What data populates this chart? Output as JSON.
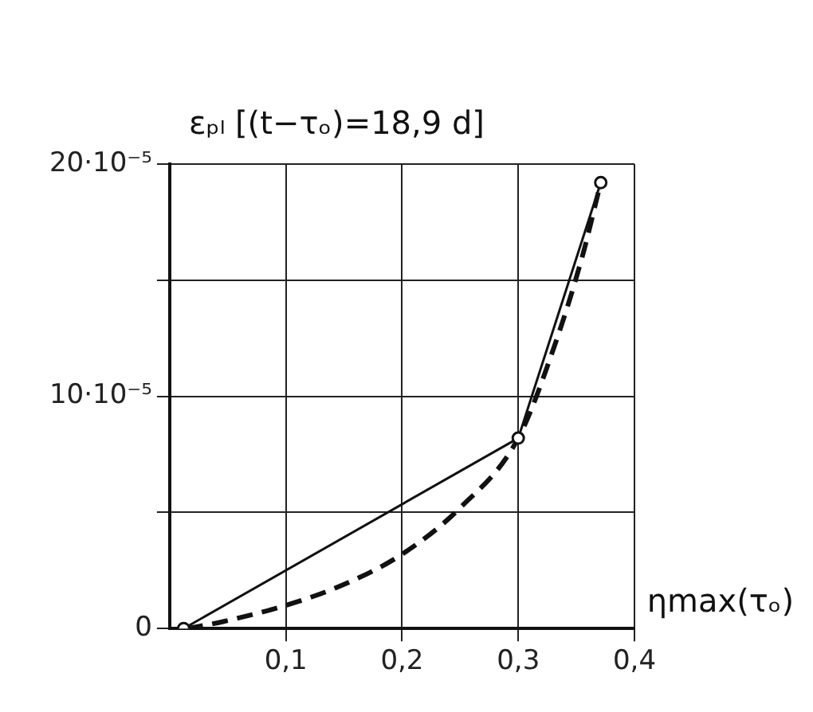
{
  "chart_data": {
    "type": "line",
    "xlabel": "ηmax(τₒ)",
    "ylabel": "εₚₗ [(t−τₒ)=18,9 d]",
    "xlim": [
      0,
      0.4
    ],
    "xticks": [
      {
        "value": 0.1,
        "label": "0,1"
      },
      {
        "value": 0.2,
        "label": "0,2"
      },
      {
        "value": 0.3,
        "label": "0,3"
      },
      {
        "value": 0.4,
        "label": "0,4"
      }
    ],
    "ylim": [
      0,
      0.0002
    ],
    "yticks": [
      0,
      {
        "value": 5e-05,
        "label": null
      },
      {
        "value": 0.0001,
        "label": "10·10⁻⁵"
      },
      {
        "value": 0.00015,
        "label": null
      },
      {
        "value": 0.0002,
        "label": "20·10⁻⁵"
      }
    ],
    "grid": true,
    "legend": false,
    "series": [
      {
        "color": "#111111",
        "x": [
          0.012,
          0.3,
          0.371
        ],
        "values": [
          0,
          8.2e-05,
          0.000192
        ],
        "marker": "circle",
        "line_style": "solid"
      },
      {
        "color": "#111111",
        "x": [
          0.015,
          0.046,
          0.1,
          0.15,
          0.2,
          0.25,
          0.3,
          0.33,
          0.355,
          0.37
        ],
        "values": [
          0,
          3e-06,
          1e-05,
          1.9e-05,
          3.2e-05,
          5.2e-05,
          8.2e-05,
          0.00012,
          0.00016,
          0.00019
        ],
        "marker": "none",
        "line_style": "dashed"
      }
    ]
  }
}
